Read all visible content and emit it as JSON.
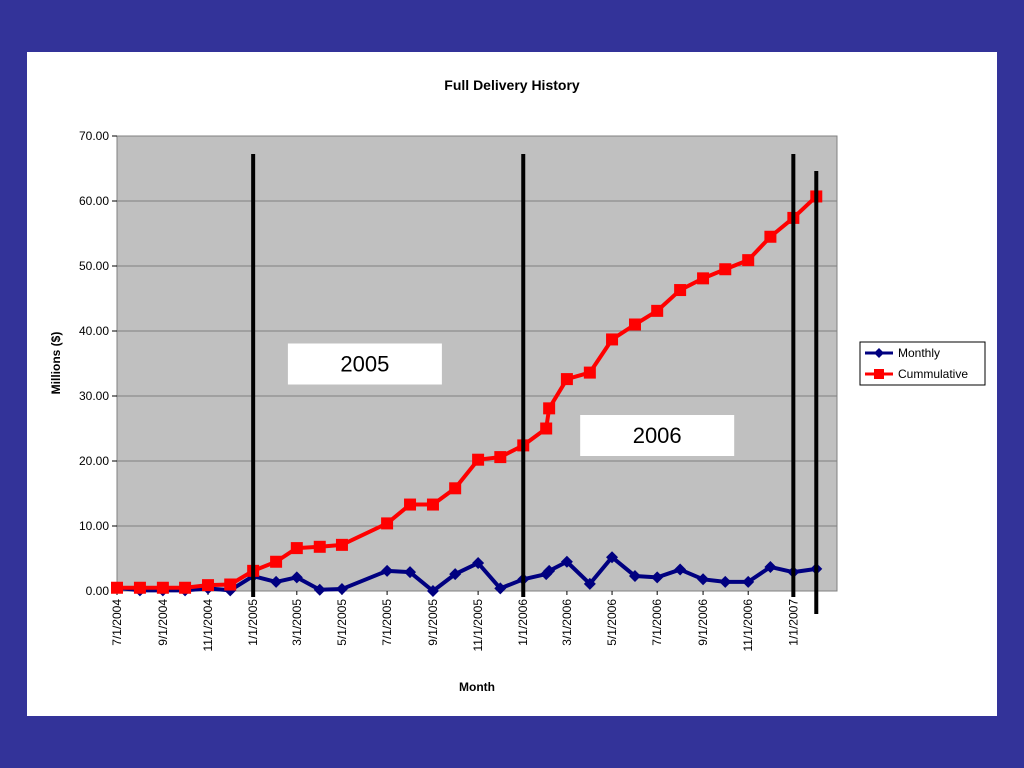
{
  "chart_data": {
    "type": "line",
    "title": "Full Delivery History",
    "xlabel": "Month",
    "ylabel": "Millions ($)",
    "ylim": [
      0,
      70
    ],
    "yticks": [
      "0.00",
      "10.00",
      "20.00",
      "30.00",
      "40.00",
      "50.00",
      "60.00",
      "70.00"
    ],
    "y_grid": true,
    "legend_position": "right",
    "x_range": [
      "2004-07-01",
      "2007-03-01"
    ],
    "x_tick_labels": [
      {
        "date": "2004-07-01",
        "label": "7/1/2004"
      },
      {
        "date": "2004-09-01",
        "label": "9/1/2004"
      },
      {
        "date": "2004-11-01",
        "label": "11/1/2004"
      },
      {
        "date": "2005-01-01",
        "label": "1/1/2005"
      },
      {
        "date": "2005-03-01",
        "label": "3/1/2005"
      },
      {
        "date": "2005-05-01",
        "label": "5/1/2005"
      },
      {
        "date": "2005-07-01",
        "label": "7/1/2005"
      },
      {
        "date": "2005-09-01",
        "label": "9/1/2005"
      },
      {
        "date": "2005-11-01",
        "label": "11/1/2005"
      },
      {
        "date": "2006-01-01",
        "label": "1/1/2006"
      },
      {
        "date": "2006-03-01",
        "label": "3/1/2006"
      },
      {
        "date": "2006-05-01",
        "label": "5/1/2006"
      },
      {
        "date": "2006-07-01",
        "label": "7/1/2006"
      },
      {
        "date": "2006-09-01",
        "label": "9/1/2006"
      },
      {
        "date": "2006-11-01",
        "label": "11/1/2006"
      },
      {
        "date": "2007-01-01",
        "label": "1/1/2007"
      }
    ],
    "series": [
      {
        "name": "Monthly",
        "color": "#000080",
        "marker": "diamond",
        "points": [
          {
            "x": "2004-07-01",
            "y": 0.5
          },
          {
            "x": "2004-08-01",
            "y": 0.1
          },
          {
            "x": "2004-09-01",
            "y": 0.1
          },
          {
            "x": "2004-10-01",
            "y": 0.1
          },
          {
            "x": "2004-11-01",
            "y": 0.4
          },
          {
            "x": "2004-12-01",
            "y": 0.1
          },
          {
            "x": "2005-01-01",
            "y": 2.3
          },
          {
            "x": "2005-02-01",
            "y": 1.4
          },
          {
            "x": "2005-03-01",
            "y": 2.1
          },
          {
            "x": "2005-04-01",
            "y": 0.2
          },
          {
            "x": "2005-05-01",
            "y": 0.3
          },
          {
            "x": "2005-07-01",
            "y": 3.1
          },
          {
            "x": "2005-08-01",
            "y": 2.9
          },
          {
            "x": "2005-09-01",
            "y": 0.0
          },
          {
            "x": "2005-10-01",
            "y": 2.6
          },
          {
            "x": "2005-11-01",
            "y": 4.3
          },
          {
            "x": "2005-12-01",
            "y": 0.4
          },
          {
            "x": "2006-01-01",
            "y": 1.8
          },
          {
            "x": "2006-02-01",
            "y": 2.6
          },
          {
            "x": "2006-02-05",
            "y": 3.1
          },
          {
            "x": "2006-03-01",
            "y": 4.5
          },
          {
            "x": "2006-04-01",
            "y": 1.1
          },
          {
            "x": "2006-05-01",
            "y": 5.2
          },
          {
            "x": "2006-06-01",
            "y": 2.3
          },
          {
            "x": "2006-07-01",
            "y": 2.1
          },
          {
            "x": "2006-08-01",
            "y": 3.3
          },
          {
            "x": "2006-09-01",
            "y": 1.8
          },
          {
            "x": "2006-10-01",
            "y": 1.4
          },
          {
            "x": "2006-11-01",
            "y": 1.4
          },
          {
            "x": "2006-12-01",
            "y": 3.7
          },
          {
            "x": "2007-01-01",
            "y": 2.9
          },
          {
            "x": "2007-02-01",
            "y": 3.4
          }
        ]
      },
      {
        "name": "Cummulative",
        "color": "#ff0000",
        "marker": "square",
        "points": [
          {
            "x": "2004-07-01",
            "y": 0.5
          },
          {
            "x": "2004-08-01",
            "y": 0.5
          },
          {
            "x": "2004-09-01",
            "y": 0.5
          },
          {
            "x": "2004-10-01",
            "y": 0.5
          },
          {
            "x": "2004-11-01",
            "y": 0.9
          },
          {
            "x": "2004-12-01",
            "y": 1.0
          },
          {
            "x": "2005-01-01",
            "y": 3.1
          },
          {
            "x": "2005-02-01",
            "y": 4.5
          },
          {
            "x": "2005-03-01",
            "y": 6.6
          },
          {
            "x": "2005-04-01",
            "y": 6.8
          },
          {
            "x": "2005-05-01",
            "y": 7.1
          },
          {
            "x": "2005-07-01",
            "y": 10.4
          },
          {
            "x": "2005-08-01",
            "y": 13.3
          },
          {
            "x": "2005-09-01",
            "y": 13.3
          },
          {
            "x": "2005-10-01",
            "y": 15.8
          },
          {
            "x": "2005-11-01",
            "y": 20.2
          },
          {
            "x": "2005-12-01",
            "y": 20.6
          },
          {
            "x": "2006-01-01",
            "y": 22.4
          },
          {
            "x": "2006-02-01",
            "y": 25.0
          },
          {
            "x": "2006-02-05",
            "y": 28.1
          },
          {
            "x": "2006-03-01",
            "y": 32.6
          },
          {
            "x": "2006-04-01",
            "y": 33.6
          },
          {
            "x": "2006-05-01",
            "y": 38.7
          },
          {
            "x": "2006-06-01",
            "y": 41.0
          },
          {
            "x": "2006-07-01",
            "y": 43.1
          },
          {
            "x": "2006-08-01",
            "y": 46.3
          },
          {
            "x": "2006-09-01",
            "y": 48.1
          },
          {
            "x": "2006-10-01",
            "y": 49.5
          },
          {
            "x": "2006-11-01",
            "y": 50.9
          },
          {
            "x": "2006-12-01",
            "y": 54.5
          },
          {
            "x": "2007-01-01",
            "y": 57.4
          },
          {
            "x": "2007-02-01",
            "y": 60.7
          }
        ]
      }
    ],
    "year_dividers": [
      "2005-01-01",
      "2006-01-01",
      "2007-01-01",
      "2007-02-01"
    ],
    "annotations": [
      {
        "text": "2005",
        "anchor_x": "2005-06-01",
        "anchor_y": 35
      },
      {
        "text": "2006",
        "anchor_x": "2006-07-01",
        "anchor_y": 24
      }
    ]
  }
}
